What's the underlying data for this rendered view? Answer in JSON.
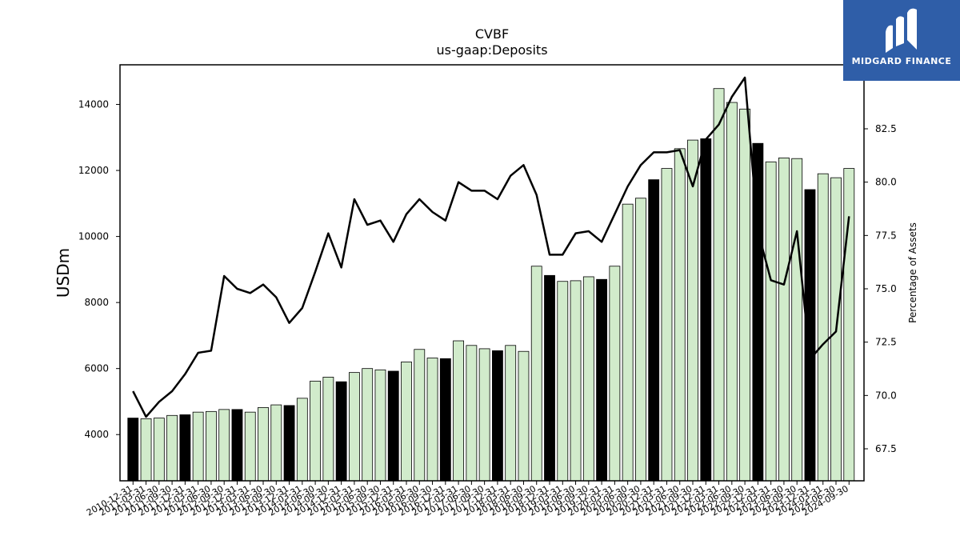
{
  "chart_data": {
    "type": "bar",
    "title": "CVBF",
    "subtitle": "us-gaap:Deposits",
    "ylabel": "USDm",
    "ylabel_right": "Percentage of Assets",
    "ylim": [
      2600,
      15200
    ],
    "ylim_right": [
      66.0,
      85.5
    ],
    "yticks": [
      4000,
      6000,
      8000,
      10000,
      12000,
      14000
    ],
    "yticks_right": [
      67.5,
      70.0,
      72.5,
      75.0,
      77.5,
      80.0,
      82.5,
      85.0
    ],
    "yticks_right_labels": [
      "67.5",
      "70.0",
      "72.5",
      "75.0",
      "77.5",
      "80.0",
      "82.5",
      "85.0"
    ],
    "categories": [
      "2010-12-31",
      "2011-03-31",
      "2011-06-30",
      "2011-09-30",
      "2011-12-31",
      "2012-03-31",
      "2012-06-30",
      "2012-09-30",
      "2012-12-31",
      "2013-03-31",
      "2013-06-30",
      "2013-09-30",
      "2013-12-31",
      "2014-03-31",
      "2014-06-30",
      "2014-09-30",
      "2014-12-31",
      "2015-03-31",
      "2015-06-30",
      "2015-09-30",
      "2015-12-31",
      "2016-03-31",
      "2016-06-30",
      "2016-09-30",
      "2016-12-31",
      "2017-03-31",
      "2017-06-30",
      "2017-09-30",
      "2017-12-31",
      "2018-03-31",
      "2018-06-30",
      "2018-09-30",
      "2018-12-31",
      "2019-03-31",
      "2019-06-30",
      "2019-09-30",
      "2019-12-31",
      "2020-03-31",
      "2020-06-30",
      "2020-09-30",
      "2020-12-31",
      "2021-03-31",
      "2021-06-30",
      "2021-09-30",
      "2021-12-31",
      "2022-03-31",
      "2022-06-30",
      "2022-09-30",
      "2022-12-31",
      "2023-03-31",
      "2023-06-30",
      "2023-09-30",
      "2023-12-31",
      "2024-03-31",
      "2024-06-30",
      "2024-09-30"
    ],
    "visible_xtick_labels": [
      "2010-12-31",
      "2011-03-31",
      "2011-06-30",
      "2011-09-30",
      "2011-12-31",
      "2012-03-31",
      "2012-06-30",
      "2012-09-30",
      "2012-12-31",
      "2013-03-31",
      "2013-06-30",
      "2013-09-30",
      "2013-12-31",
      "2014-03-31",
      "2014-06-30",
      "2014-09-30",
      "2014-12-31",
      "2015-03-31",
      "2015-06-30",
      "2015-09-30",
      "2015-12-31",
      "2016-03-31",
      "2016-06-30",
      "2016-09-30",
      "2016-12-31",
      "2017-03-31",
      "2017-06-30",
      "2017-09-30",
      "2017-12-31",
      "2018-03-31",
      "2018-06-30",
      "2018-09-30",
      "2018-12-31",
      "2019-03-31",
      "2019-06-30",
      "2019-09-30",
      "2019-12-31",
      "2020-03-31",
      "2020-06-30",
      "2020-09-30",
      "2020-12-31",
      "2021-03-31",
      "2021-06-30",
      "2021-09-30",
      "2021-12-31",
      "2022-03-31",
      "2022-06-30",
      "2022-09-30",
      "2022-12-31",
      "2023-03-31",
      "2023-06-30",
      "2023-09-30",
      "2023-12-31",
      "2024-03-31",
      "2024-06-30",
      "2024-09-30"
    ],
    "series": [
      {
        "type": "bar",
        "axis": "left",
        "values": [
          4500,
          4480,
          4500,
          4580,
          4600,
          4680,
          4700,
          4760,
          4760,
          4680,
          4820,
          4900,
          4880,
          5100,
          5620,
          5740,
          5600,
          5880,
          6000,
          5960,
          5920,
          6200,
          6580,
          6320,
          6300,
          6840,
          6700,
          6600,
          6540,
          6700,
          6520,
          9100,
          8820,
          8640,
          8660,
          8780,
          8700,
          9100,
          10980,
          11160,
          11720,
          12060,
          12660,
          12920,
          12960,
          14480,
          14060,
          13860,
          12820,
          12260,
          12380,
          12360,
          11420,
          11900,
          11780,
          12060
        ]
      },
      {
        "type": "line",
        "axis": "right",
        "values": [
          70.2,
          69.0,
          69.7,
          70.2,
          71.0,
          72.0,
          72.1,
          75.6,
          75.0,
          74.8,
          75.2,
          74.6,
          73.4,
          74.1,
          75.8,
          77.6,
          76.0,
          79.2,
          78.0,
          78.2,
          77.2,
          78.5,
          79.2,
          78.6,
          78.2,
          80.0,
          79.6,
          79.6,
          79.2,
          80.3,
          80.8,
          79.4,
          76.6,
          76.6,
          77.6,
          77.7,
          77.2,
          78.5,
          79.8,
          80.8,
          81.4,
          81.4,
          81.5,
          79.8,
          82.0,
          82.7,
          84.0,
          84.9,
          77.7,
          75.4,
          75.2,
          77.7,
          71.7,
          72.4,
          73.0,
          78.4
        ]
      }
    ],
    "bar_colors": {
      "year_end": "#000000",
      "quarter": "#d1ebcb",
      "edge": "#000000"
    },
    "line_color": "#000000",
    "grid": false,
    "legend": "none"
  },
  "logo": {
    "text": "MIDGARD FINANCE",
    "background": "#2f5ea8"
  }
}
